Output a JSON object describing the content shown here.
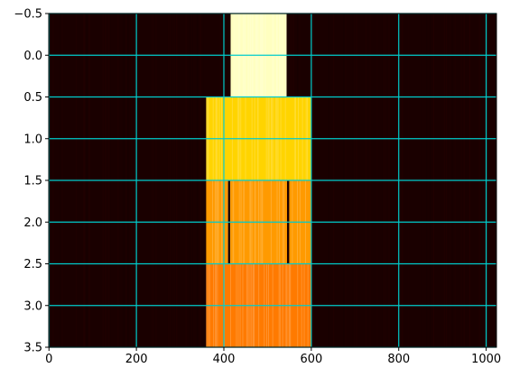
{
  "chart_data": {
    "type": "heatmap",
    "title": "",
    "xlabel": "",
    "ylabel": "",
    "colormap": "hot",
    "rows": 4,
    "columns": 1024,
    "xlim": [
      -0.5,
      1023.5
    ],
    "ylim": [
      3.5,
      -0.5
    ],
    "x_ticks": [
      {
        "value": 0,
        "label": "0"
      },
      {
        "value": 200,
        "label": "200"
      },
      {
        "value": 400,
        "label": "400"
      },
      {
        "value": 600,
        "label": "600"
      },
      {
        "value": 800,
        "label": "800"
      },
      {
        "value": 1000,
        "label": "1000"
      }
    ],
    "y_ticks": [
      {
        "value": -0.5,
        "label": "−0.5"
      },
      {
        "value": 0.0,
        "label": "0.0"
      },
      {
        "value": 0.5,
        "label": "0.5"
      },
      {
        "value": 1.0,
        "label": "1.0"
      },
      {
        "value": 1.5,
        "label": "1.5"
      },
      {
        "value": 2.0,
        "label": "2.0"
      },
      {
        "value": 2.5,
        "label": "2.5"
      },
      {
        "value": 3.0,
        "label": "3.0"
      },
      {
        "value": 3.5,
        "label": "3.5"
      }
    ],
    "grid": true,
    "grid_color": "#00cccc",
    "background_color": "#1a0000",
    "bands": [
      {
        "row": 0,
        "x_start": 416,
        "x_end": 544,
        "color": "#ffffc0"
      },
      {
        "row": 1,
        "x_start": 360,
        "x_end": 600,
        "color": "#ffd400"
      },
      {
        "row": 2,
        "x_start": 360,
        "x_end": 600,
        "color": "#ff9a00"
      },
      {
        "row": 3,
        "x_start": 360,
        "x_end": 600,
        "color": "#ff7a00"
      }
    ],
    "gaps": [
      {
        "row": 2,
        "x_start": 410,
        "x_end": 415,
        "color": "#1a0000"
      },
      {
        "row": 2,
        "x_start": 545,
        "x_end": 550,
        "color": "#1a0000"
      }
    ]
  }
}
